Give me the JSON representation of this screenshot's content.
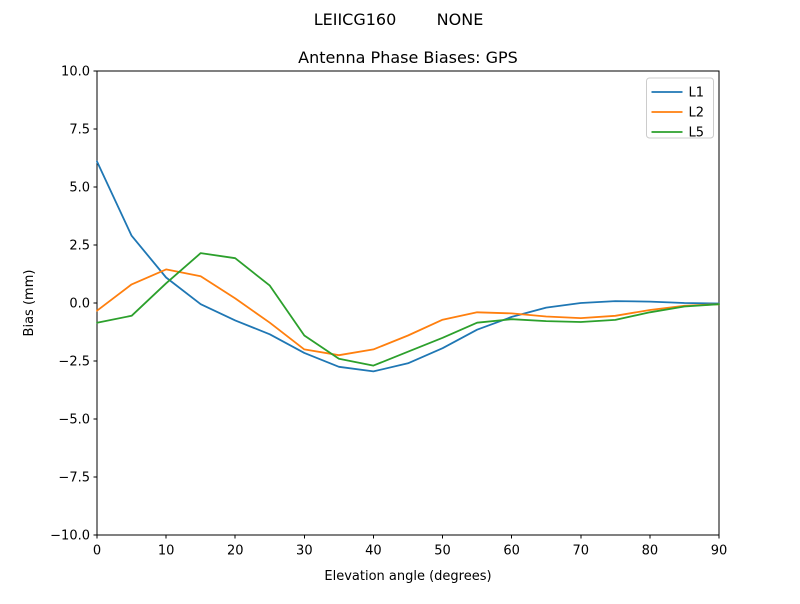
{
  "header": {
    "title_left": "LEIICG160",
    "title_right": "NONE"
  },
  "chart_data": {
    "type": "line",
    "title": "Antenna Phase Biases: GPS",
    "xlabel": "Elevation angle (degrees)",
    "ylabel": "Bias (mm)",
    "xlim": [
      0,
      90
    ],
    "ylim": [
      -10,
      10
    ],
    "grid": false,
    "legend_position": "upper right",
    "xticks": [
      {
        "v": 0,
        "label": "0"
      },
      {
        "v": 10,
        "label": "10"
      },
      {
        "v": 20,
        "label": "20"
      },
      {
        "v": 30,
        "label": "30"
      },
      {
        "v": 40,
        "label": "40"
      },
      {
        "v": 50,
        "label": "50"
      },
      {
        "v": 60,
        "label": "60"
      },
      {
        "v": 70,
        "label": "70"
      },
      {
        "v": 80,
        "label": "80"
      },
      {
        "v": 90,
        "label": "90"
      }
    ],
    "yticks": [
      {
        "v": 10,
        "label": "10.0"
      },
      {
        "v": 7.5,
        "label": "7.5"
      },
      {
        "v": 5,
        "label": "5.0"
      },
      {
        "v": 2.5,
        "label": "2.5"
      },
      {
        "v": 0,
        "label": "0.0"
      },
      {
        "v": -2.5,
        "label": "−2.5"
      },
      {
        "v": -5,
        "label": "−5.0"
      },
      {
        "v": -7.5,
        "label": "−7.5"
      },
      {
        "v": -10,
        "label": "−10.0"
      }
    ],
    "x": [
      0,
      5,
      10,
      15,
      20,
      25,
      30,
      35,
      40,
      45,
      50,
      55,
      60,
      65,
      70,
      75,
      80,
      85,
      90
    ],
    "series": [
      {
        "name": "L1",
        "color": "#1f77b4",
        "values": [
          6.1,
          2.9,
          1.1,
          -0.05,
          -0.75,
          -1.35,
          -2.15,
          -2.75,
          -2.95,
          -2.6,
          -1.95,
          -1.15,
          -0.6,
          -0.2,
          0.0,
          0.08,
          0.06,
          0.0,
          -0.02
        ]
      },
      {
        "name": "L2",
        "color": "#ff7f0e",
        "values": [
          -0.33,
          0.8,
          1.45,
          1.15,
          0.2,
          -0.85,
          -2.0,
          -2.25,
          -2.0,
          -1.4,
          -0.72,
          -0.4,
          -0.45,
          -0.58,
          -0.65,
          -0.55,
          -0.3,
          -0.12,
          -0.05
        ]
      },
      {
        "name": "L5",
        "color": "#2ca02c",
        "values": [
          -0.85,
          -0.55,
          0.85,
          2.15,
          1.93,
          0.75,
          -1.4,
          -2.4,
          -2.7,
          -2.1,
          -1.5,
          -0.85,
          -0.7,
          -0.78,
          -0.82,
          -0.73,
          -0.4,
          -0.15,
          -0.05
        ]
      }
    ]
  }
}
